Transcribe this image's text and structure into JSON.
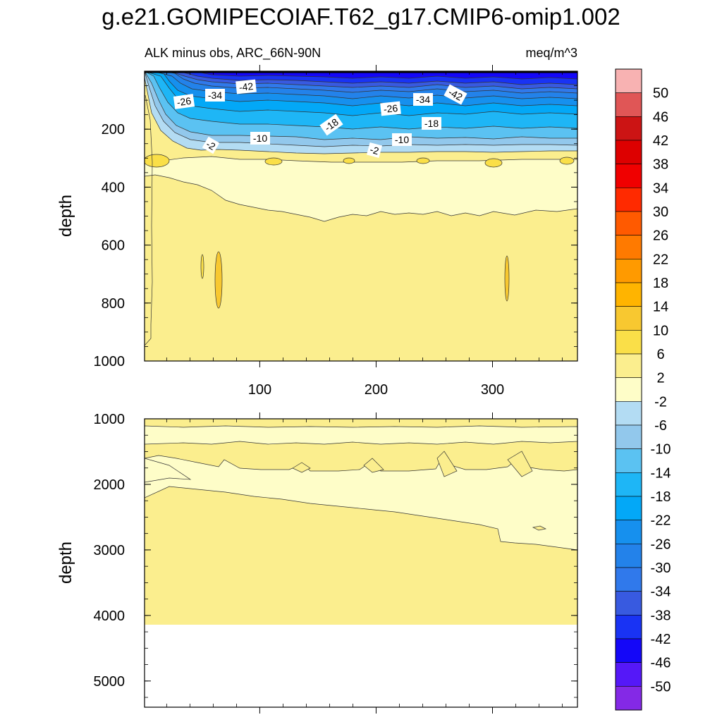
{
  "chart_data": {
    "type": "contour",
    "title": "g.e21.GOMIPECOIAF.T62_g17.CMIP6-omip1.002",
    "subtitle_left": "ALK minus obs, ARC_66N-90N",
    "subtitle_right": "meq/m^3",
    "units": "meq/m^3",
    "xlim": [
      1,
      373
    ],
    "xticks": [
      100,
      200,
      300
    ],
    "panels": [
      {
        "name": "upper",
        "ylabel": "depth",
        "ylim": [
          0,
          1000
        ],
        "yticks": [
          200,
          400,
          600,
          800,
          1000
        ],
        "contour_labels": [
          "-42",
          "-34",
          "-26",
          "-42",
          "-34",
          "-26",
          "-18",
          "-18",
          "-10",
          "-10",
          "-2",
          "-2"
        ]
      },
      {
        "name": "lower",
        "ylabel": "depth",
        "ylim": [
          1000,
          5400
        ],
        "yticks": [
          1000,
          2000,
          3000,
          4000,
          5000
        ],
        "data_bottom_depth": 4110
      }
    ],
    "colorbar": {
      "labels": [
        "50",
        "46",
        "42",
        "38",
        "34",
        "30",
        "26",
        "22",
        "18",
        "14",
        "10",
        "6",
        "2",
        "-2",
        "-6",
        "-10",
        "-14",
        "-18",
        "-22",
        "-26",
        "-30",
        "-34",
        "-38",
        "-42",
        "-46",
        "-50"
      ],
      "colors": [
        "#f8b2b2",
        "#e05656",
        "#cc1414",
        "#dd0000",
        "#f00000",
        "#ff2a00",
        "#ff5a00",
        "#ff7a00",
        "#ff9a00",
        "#ffb400",
        "#f8c830",
        "#fadf48",
        "#fbee8e",
        "#fefdc8",
        "#b3dcf3",
        "#92c8ec",
        "#5bc2f2",
        "#1eb6f6",
        "#03a8f7",
        "#1690ee",
        "#2382ea",
        "#3079eb",
        "#385ae0",
        "#1933f4",
        "#1407f8",
        "#5518f8",
        "#8429e6"
      ]
    }
  }
}
